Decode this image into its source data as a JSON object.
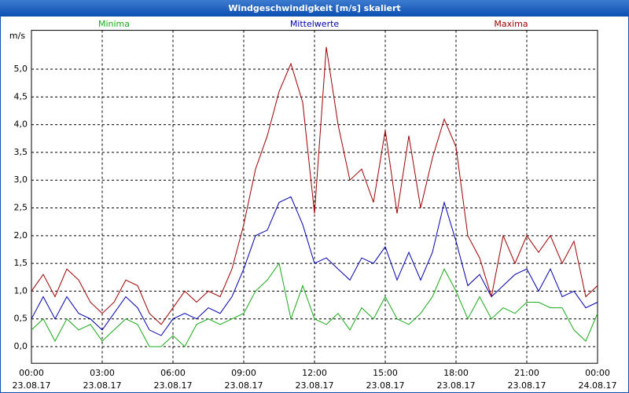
{
  "chart_data": {
    "type": "line",
    "title": "Windgeschwindigkeit [m/s] skaliert",
    "y_label": "m/s",
    "x": [
      0,
      0.5,
      1,
      1.5,
      2,
      2.5,
      3,
      3.5,
      4,
      4.5,
      5,
      5.5,
      6,
      6.5,
      7,
      7.5,
      8,
      8.5,
      9,
      9.5,
      10,
      10.5,
      11,
      11.5,
      12,
      12.5,
      13,
      13.5,
      14,
      14.5,
      15,
      15.5,
      16,
      16.5,
      17,
      17.5,
      18,
      18.5,
      19,
      19.5,
      20,
      20.5,
      21,
      21.5,
      22,
      22.5,
      23,
      23.5,
      24
    ],
    "series": [
      {
        "name": "Minima",
        "color": "#1aaa1a",
        "values": [
          0.3,
          0.5,
          0.1,
          0.5,
          0.3,
          0.4,
          0.1,
          0.3,
          0.5,
          0.4,
          0.0,
          0.0,
          0.2,
          0.0,
          0.4,
          0.5,
          0.4,
          0.5,
          0.6,
          1.0,
          1.2,
          1.5,
          0.5,
          1.1,
          0.5,
          0.4,
          0.6,
          0.3,
          0.7,
          0.5,
          0.9,
          0.5,
          0.4,
          0.6,
          0.9,
          1.4,
          1.0,
          0.5,
          0.9,
          0.5,
          0.7,
          0.6,
          0.8,
          0.8,
          0.7,
          0.7,
          0.3,
          0.1,
          0.6
        ]
      },
      {
        "name": "Mittelwerte",
        "color": "#0000b0",
        "values": [
          0.5,
          0.9,
          0.5,
          0.9,
          0.6,
          0.5,
          0.3,
          0.6,
          0.9,
          0.7,
          0.3,
          0.2,
          0.5,
          0.6,
          0.5,
          0.7,
          0.6,
          0.9,
          1.4,
          2.0,
          2.1,
          2.6,
          2.7,
          2.2,
          1.5,
          1.6,
          1.4,
          1.2,
          1.6,
          1.5,
          1.8,
          1.2,
          1.7,
          1.2,
          1.7,
          2.6,
          1.9,
          1.1,
          1.3,
          0.9,
          1.1,
          1.3,
          1.4,
          1.0,
          1.4,
          0.9,
          1.0,
          0.7,
          0.8
        ]
      },
      {
        "name": "Maxima",
        "color": "#a00000",
        "values": [
          1.0,
          1.3,
          0.9,
          1.4,
          1.2,
          0.8,
          0.6,
          0.8,
          1.2,
          1.1,
          0.6,
          0.4,
          0.7,
          1.0,
          0.8,
          1.0,
          0.9,
          1.4,
          2.2,
          3.2,
          3.8,
          4.6,
          5.1,
          4.4,
          2.4,
          5.4,
          4.0,
          3.0,
          3.2,
          2.6,
          3.9,
          2.4,
          3.8,
          2.5,
          3.4,
          4.1,
          3.6,
          2.0,
          1.6,
          0.9,
          2.0,
          1.5,
          2.0,
          1.7,
          2.0,
          1.5,
          1.9,
          0.9,
          1.1
        ]
      }
    ],
    "xlim": [
      0,
      24
    ],
    "xticks": [
      {
        "value": 0,
        "label": "00:00",
        "date": "23.08.17"
      },
      {
        "value": 3,
        "label": "03:00",
        "date": "23.08.17"
      },
      {
        "value": 6,
        "label": "06:00",
        "date": "23.08.17"
      },
      {
        "value": 9,
        "label": "09:00",
        "date": "23.08.17"
      },
      {
        "value": 12,
        "label": "12:00",
        "date": "23.08.17"
      },
      {
        "value": 15,
        "label": "15:00",
        "date": "23.08.17"
      },
      {
        "value": 18,
        "label": "18:00",
        "date": "23.08.17"
      },
      {
        "value": 21,
        "label": "21:00",
        "date": "23.08.17"
      },
      {
        "value": 24,
        "label": "00:00",
        "date": "24.08.17"
      }
    ],
    "ylim": [
      -0.3,
      5.7
    ],
    "yticks": [
      {
        "value": 0,
        "label": "0,0"
      },
      {
        "value": 0.5,
        "label": "0,5"
      },
      {
        "value": 1,
        "label": "1,0"
      },
      {
        "value": 1.5,
        "label": "1,5"
      },
      {
        "value": 2,
        "label": "2,0"
      },
      {
        "value": 2.5,
        "label": "2,5"
      },
      {
        "value": 3,
        "label": "3,0"
      },
      {
        "value": 3.5,
        "label": "3,5"
      },
      {
        "value": 4,
        "label": "4,0"
      },
      {
        "value": 4.5,
        "label": "4,5"
      },
      {
        "value": 5,
        "label": "5,0"
      }
    ],
    "grid": true
  }
}
